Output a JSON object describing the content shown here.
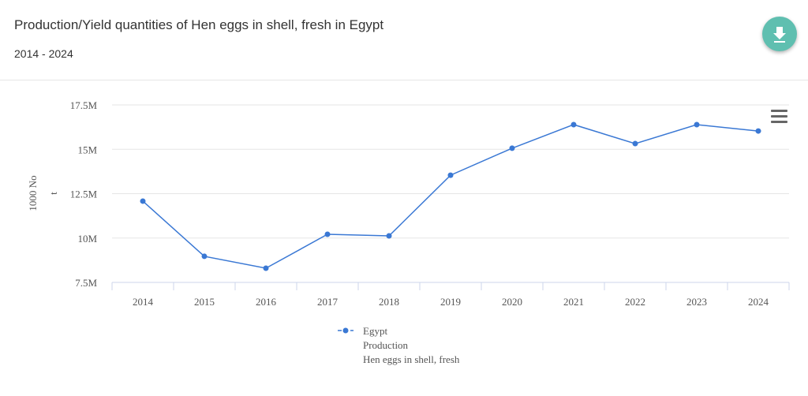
{
  "header": {
    "title": "Production/Yield quantities of Hen eggs in shell, fresh in Egypt",
    "subtitle": "2014 - 2024",
    "download_icon": "download-icon"
  },
  "menu_icon": "hamburger-menu-icon",
  "chart_data": {
    "type": "line",
    "title": "",
    "xlabel": "",
    "ylabel": "1000 No",
    "ylabel2": "t",
    "categories": [
      "2014",
      "2015",
      "2016",
      "2017",
      "2018",
      "2019",
      "2020",
      "2021",
      "2022",
      "2023",
      "2024"
    ],
    "y_ticks": [
      "7.5M",
      "10M",
      "12.5M",
      "15M",
      "17.5M"
    ],
    "ylim": [
      7500000,
      17500000
    ],
    "grid": true,
    "legend_placement": "bottom",
    "series": [
      {
        "name": "Egypt",
        "legend_lines": [
          "Egypt",
          "Production",
          "Hen eggs in shell, fresh"
        ],
        "color": "#3a78d4",
        "values": [
          12080000,
          8970000,
          8300000,
          10210000,
          10120000,
          13540000,
          15060000,
          16390000,
          15320000,
          16390000,
          16030000
        ]
      }
    ]
  }
}
